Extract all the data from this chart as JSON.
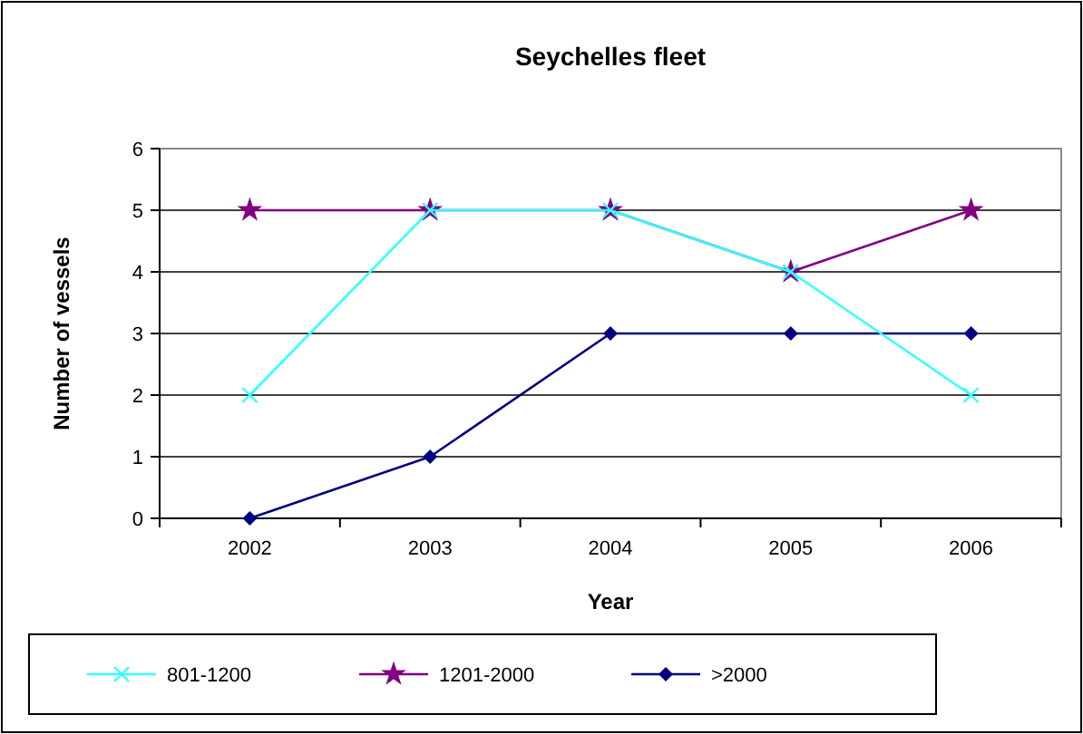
{
  "chart_data": {
    "type": "line",
    "title": "Seychelles fleet",
    "xlabel": "Year",
    "ylabel": "Number of vessels",
    "categories": [
      "2002",
      "2003",
      "2004",
      "2005",
      "2006"
    ],
    "series": [
      {
        "name": "801-1200",
        "color": "#33ffff",
        "values": [
          2,
          5,
          5,
          4,
          2
        ],
        "marker": "cross"
      },
      {
        "name": "1201-2000",
        "color": "#800080",
        "values": [
          5,
          5,
          5,
          4,
          5
        ],
        "marker": "star"
      },
      {
        "name": ">2000",
        "color": "#000080",
        "values": [
          0,
          1,
          3,
          3,
          3
        ],
        "marker": "diamond"
      }
    ],
    "ylim": [
      0,
      6
    ],
    "yticks": [
      0,
      1,
      2,
      3,
      4,
      5,
      6
    ],
    "grid": "y",
    "legend": "bottom"
  }
}
